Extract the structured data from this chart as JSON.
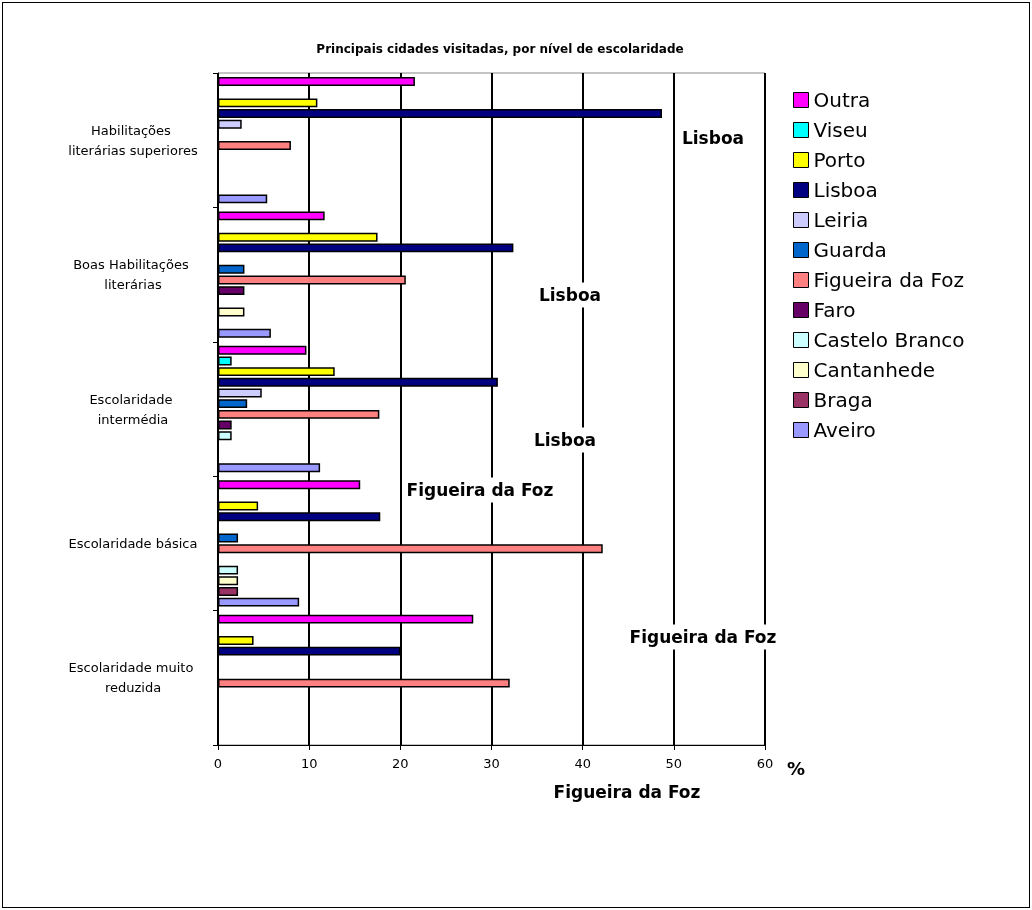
{
  "chart_data": {
    "type": "bar",
    "orientation": "horizontal",
    "title": "Principais cidades visitadas, por nível de escolaridade",
    "xlabel": "%",
    "categories": [
      "Habilitações literárias superiores",
      "Boas Habilitações literárias",
      "Escolaridade intermédia",
      "Escolaridade básica",
      "Escolaridade muito reduzida"
    ],
    "series": [
      {
        "name": "Outra",
        "color": "#ff00ff",
        "values": [
          21.6,
          11.7,
          9.7,
          15.6,
          28.0
        ]
      },
      {
        "name": "Viseu",
        "color": "#00ffff",
        "values": [
          null,
          null,
          1.5,
          null,
          null
        ]
      },
      {
        "name": "Porto",
        "color": "#ffff00",
        "values": [
          10.9,
          17.5,
          12.8,
          4.4,
          3.9
        ]
      },
      {
        "name": "Lisboa",
        "color": "#000080",
        "values": [
          48.7,
          32.4,
          30.7,
          17.8,
          20.0
        ]
      },
      {
        "name": "Leiria",
        "color": "#ccccff",
        "values": [
          2.6,
          null,
          4.8,
          null,
          null
        ]
      },
      {
        "name": "Guarda",
        "color": "#0066cc",
        "values": [
          null,
          2.9,
          3.2,
          2.2,
          null
        ]
      },
      {
        "name": "Figueira da Foz",
        "color": "#ff8080",
        "values": [
          8.0,
          20.6,
          17.7,
          42.2,
          32.0
        ]
      },
      {
        "name": "Faro",
        "color": "#660066",
        "values": [
          null,
          2.9,
          1.5,
          null,
          null
        ]
      },
      {
        "name": "Castelo Branco",
        "color": "#ccffff",
        "values": [
          null,
          null,
          1.5,
          2.2,
          null
        ]
      },
      {
        "name": "Cantanhede",
        "color": "#ffffcc",
        "values": [
          null,
          2.9,
          null,
          2.2,
          null
        ]
      },
      {
        "name": "Braga",
        "color": "#993366",
        "values": [
          null,
          null,
          null,
          2.2,
          null
        ]
      },
      {
        "name": "Aveiro",
        "color": "#9999ff",
        "values": [
          5.4,
          5.8,
          11.2,
          8.9,
          null
        ]
      }
    ],
    "xlim": [
      0,
      60
    ],
    "xticks": [
      0,
      10,
      20,
      30,
      40,
      50,
      60
    ],
    "grid": "x",
    "legend": "right",
    "annotations": [
      "Lisboa",
      "Lisboa",
      "Lisboa",
      "Figueira da Foz",
      "Figueira da Foz",
      "Figueira da Foz"
    ]
  }
}
